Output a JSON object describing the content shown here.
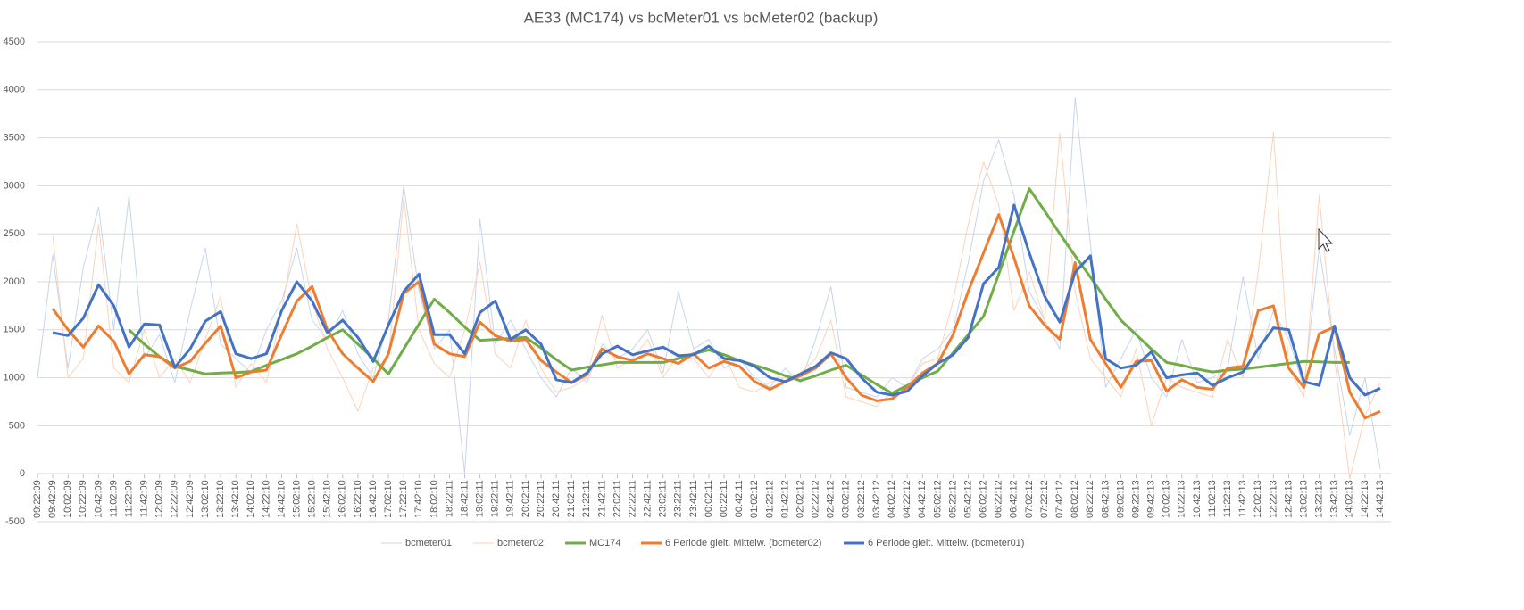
{
  "chart_data": {
    "type": "line",
    "title": "AE33 (MC174) vs bcMeter01 vs bcMeter02 (backup)",
    "categories": [
      "09:22:09",
      "09:42:09",
      "10:02:09",
      "10:22:09",
      "10:42:09",
      "11:02:09",
      "11:22:09",
      "11:42:09",
      "12:02:09",
      "12:22:09",
      "12:42:09",
      "13:02:10",
      "13:22:10",
      "13:42:10",
      "14:02:10",
      "14:22:10",
      "14:42:10",
      "15:02:10",
      "15:22:10",
      "15:42:10",
      "16:02:10",
      "16:22:10",
      "16:42:10",
      "17:02:10",
      "17:22:10",
      "17:42:10",
      "18:02:10",
      "18:22:11",
      "18:42:11",
      "19:02:11",
      "19:22:11",
      "19:42:11",
      "20:02:11",
      "20:22:11",
      "20:42:11",
      "21:02:11",
      "21:22:11",
      "21:42:11",
      "22:02:11",
      "22:22:11",
      "22:42:11",
      "23:02:11",
      "23:22:11",
      "23:42:11",
      "00:02:11",
      "00:22:11",
      "00:42:11",
      "01:02:12",
      "01:22:12",
      "01:42:12",
      "02:02:12",
      "02:22:12",
      "02:42:12",
      "03:02:12",
      "03:22:12",
      "03:42:12",
      "04:02:12",
      "04:22:12",
      "04:42:12",
      "05:02:12",
      "05:22:12",
      "05:42:12",
      "06:02:12",
      "06:22:12",
      "06:42:12",
      "07:02:12",
      "07:22:12",
      "07:42:12",
      "08:02:12",
      "08:22:12",
      "08:42:13",
      "09:02:13",
      "09:22:13",
      "09:42:13",
      "10:02:13",
      "10:22:13",
      "10:42:13",
      "11:02:13",
      "11:22:13",
      "11:42:13",
      "12:02:13",
      "12:22:13",
      "12:42:13",
      "13:02:13",
      "13:22:13",
      "13:42:13",
      "14:02:13",
      "14:22:13",
      "14:42:13"
    ],
    "series": [
      {
        "name": "bcmeter01",
        "color": "#c5d5ee",
        "width": 1,
        "values": [
          1000,
          2280,
          1100,
          2150,
          2780,
          1500,
          2900,
          1200,
          1450,
          950,
          1700,
          2350,
          1350,
          1200,
          1050,
          1500,
          1800,
          2350,
          1600,
          1400,
          1700,
          1250,
          1000,
          1600,
          3000,
          1900,
          1300,
          1500,
          0,
          2650,
          1350,
          1600,
          1300,
          1000,
          800,
          1100,
          950,
          1350,
          1200,
          1300,
          1500,
          1050,
          1900,
          1300,
          1400,
          1100,
          1200,
          1000,
          900,
          1100,
          950,
          1400,
          1950,
          900,
          850,
          800,
          1000,
          900,
          1200,
          1300,
          1500,
          2200,
          3050,
          3480,
          2900,
          1900,
          1600,
          1300,
          3920,
          2400,
          900,
          1200,
          1500,
          1000,
          800,
          1400,
          950,
          1000,
          1100,
          2050,
          1200,
          1700,
          1400,
          900,
          2350,
          1300,
          400,
          1000,
          50
        ]
      },
      {
        "name": "bcmeter02",
        "color": "#fbd3b8",
        "width": 1,
        "values": [
          null,
          2480,
          1000,
          1200,
          2600,
          1100,
          950,
          1500,
          1000,
          1200,
          950,
          1400,
          1850,
          900,
          1150,
          950,
          1700,
          2600,
          1800,
          1300,
          1000,
          650,
          1100,
          1200,
          2880,
          1500,
          1150,
          1000,
          1500,
          2200,
          1250,
          1100,
          1600,
          1100,
          850,
          900,
          1000,
          1650,
          1100,
          1200,
          1400,
          1000,
          1250,
          1200,
          1000,
          1250,
          900,
          850,
          950,
          1000,
          1050,
          1200,
          1600,
          800,
          750,
          700,
          850,
          900,
          1150,
          1200,
          1800,
          2600,
          3250,
          2800,
          1700,
          2100,
          1600,
          3550,
          1900,
          1200,
          1000,
          800,
          1300,
          500,
          1000,
          900,
          850,
          800,
          1400,
          1000,
          2100,
          3560,
          1100,
          800,
          2900,
          1200,
          -50,
          600,
          950
        ]
      },
      {
        "name": "MC174",
        "color": "#70ad47",
        "width": 3,
        "values": [
          null,
          null,
          null,
          null,
          null,
          null,
          1500,
          1350,
          1220,
          1120,
          1080,
          1040,
          1050,
          1055,
          1065,
          1130,
          1190,
          1250,
          1330,
          1420,
          1500,
          1350,
          1200,
          1040,
          1300,
          1560,
          1820,
          1680,
          1530,
          1390,
          1400,
          1410,
          1420,
          1310,
          1190,
          1080,
          1110,
          1135,
          1160,
          1160,
          1160,
          1160,
          1200,
          1250,
          1290,
          1240,
          1180,
          1130,
          1080,
          1020,
          970,
          1020,
          1080,
          1130,
          1030,
          930,
          840,
          920,
          1000,
          1070,
          1260,
          1450,
          1640,
          2080,
          2530,
          2970,
          2740,
          2500,
          2270,
          2050,
          1820,
          1600,
          1450,
          1300,
          1160,
          1130,
          1090,
          1060,
          1080,
          1090,
          1110,
          1130,
          1150,
          1170,
          1165,
          1160,
          1160,
          null,
          null
        ]
      },
      {
        "name": "6 Periode gleit. Mittelw. (bcmeter02)",
        "color": "#ed7d31",
        "width": 3,
        "values": [
          null,
          1720,
          1500,
          1320,
          1540,
          1380,
          1040,
          1240,
          1220,
          1100,
          1170,
          1360,
          1540,
          1000,
          1060,
          1080,
          1450,
          1800,
          1950,
          1500,
          1250,
          1100,
          960,
          1250,
          1880,
          2000,
          1350,
          1250,
          1220,
          1580,
          1440,
          1380,
          1400,
          1180,
          1060,
          950,
          1030,
          1300,
          1220,
          1180,
          1250,
          1200,
          1150,
          1250,
          1100,
          1170,
          1120,
          960,
          880,
          960,
          1020,
          1100,
          1250,
          1000,
          820,
          760,
          780,
          900,
          1050,
          1150,
          1450,
          1900,
          2300,
          2700,
          2250,
          1750,
          1550,
          1400,
          2200,
          1400,
          1150,
          900,
          1170,
          1180,
          860,
          980,
          900,
          880,
          1100,
          1120,
          1700,
          1750,
          1100,
          900,
          1460,
          1530,
          850,
          580,
          650
        ]
      },
      {
        "name": "6 Periode gleit. Mittelw. (bcmeter01)",
        "color": "#4472c4",
        "width": 3,
        "values": [
          null,
          1470,
          1440,
          1620,
          1970,
          1750,
          1320,
          1560,
          1550,
          1110,
          1300,
          1590,
          1690,
          1250,
          1200,
          1250,
          1700,
          2000,
          1800,
          1470,
          1600,
          1420,
          1170,
          1550,
          1900,
          2080,
          1450,
          1450,
          1250,
          1680,
          1800,
          1400,
          1500,
          1350,
          980,
          950,
          1050,
          1250,
          1330,
          1240,
          1280,
          1320,
          1230,
          1240,
          1330,
          1200,
          1180,
          1120,
          1000,
          960,
          1040,
          1120,
          1260,
          1200,
          1000,
          850,
          820,
          860,
          1020,
          1150,
          1240,
          1420,
          1980,
          2150,
          2800,
          2300,
          1850,
          1580,
          2100,
          2270,
          1200,
          1100,
          1130,
          1270,
          1000,
          1030,
          1050,
          920,
          1000,
          1060,
          1300,
          1520,
          1500,
          960,
          920,
          1540,
          1000,
          820,
          890
        ]
      }
    ],
    "ylim": [
      -500,
      4500
    ],
    "yticks": [
      -500,
      0,
      500,
      1000,
      1500,
      2000,
      2500,
      3000,
      3500,
      4000,
      4500
    ],
    "grid": true,
    "legend": "bottom"
  }
}
